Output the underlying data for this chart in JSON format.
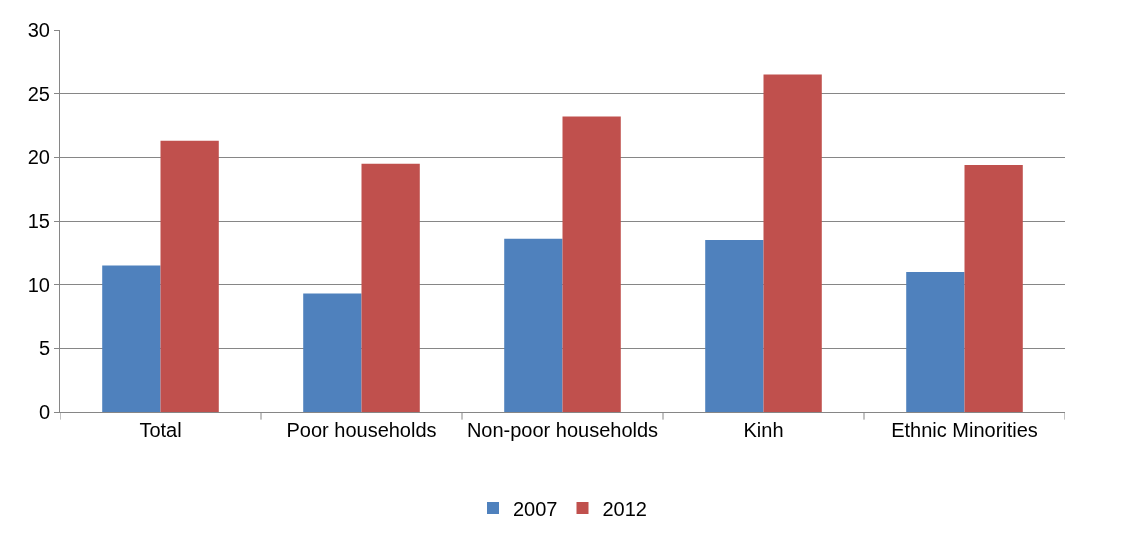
{
  "chart_data": {
    "type": "bar",
    "categories": [
      "Total",
      "Poor households",
      "Non-poor households",
      "Kinh",
      "Ethnic Minorities"
    ],
    "series": [
      {
        "name": "2007",
        "color": "#4f81bd",
        "values": [
          11.5,
          9.3,
          13.6,
          13.5,
          11.0
        ]
      },
      {
        "name": "2012",
        "color": "#c0504d",
        "values": [
          21.3,
          19.5,
          23.2,
          26.5,
          19.4
        ]
      }
    ],
    "ylim": [
      0,
      30
    ],
    "yticks": [
      0,
      5,
      10,
      15,
      20,
      25,
      30
    ],
    "grid": "y",
    "legend": "bottom"
  }
}
